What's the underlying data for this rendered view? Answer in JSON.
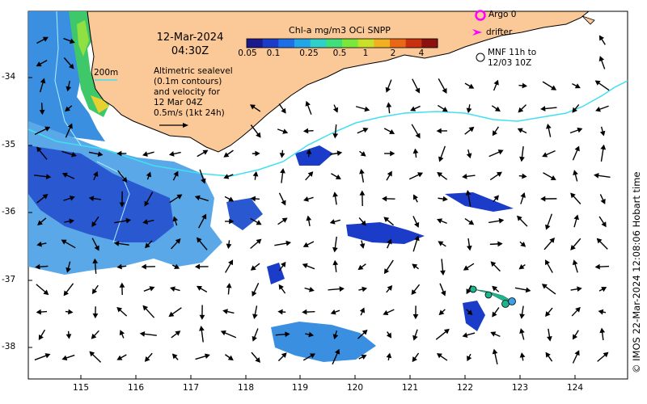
{
  "title": {
    "date": "12-Mar-2024",
    "time": "04:30Z"
  },
  "colorbar": {
    "title": "Chl-a mg/m3 OCi SNPP",
    "ticks": [
      "0.05",
      "0.1",
      "0.25",
      "0.5",
      "1",
      "2",
      "4"
    ],
    "colors": [
      "#1a1a8c",
      "#1b3cc8",
      "#1e6fe6",
      "#22a6e8",
      "#2fd0c8",
      "#3fe07a",
      "#7ae83a",
      "#c8e028",
      "#f0b020",
      "#e86818",
      "#c83010",
      "#8c1010"
    ]
  },
  "info": {
    "line1": "Altimetric sealevel",
    "line2": "(0.1m contours)",
    "line3": "and velocity for",
    "line4": "12 Mar 04Z",
    "line5": "0.5m/s (1kt 24h)"
  },
  "depth_label": "200m",
  "legend": {
    "argo": "Argo 0",
    "drifter": "drifter",
    "mnf_line1": "MNF 11h to",
    "mnf_line2": "12/03 10Z"
  },
  "axes": {
    "lon_ticks": [
      "115",
      "116",
      "117",
      "118",
      "119",
      "120",
      "121",
      "122",
      "123",
      "124"
    ],
    "lat_ticks": [
      "-34",
      "-35",
      "-36",
      "-37",
      "-38"
    ],
    "lon_range": [
      114.05,
      125.0
    ],
    "lat_range": [
      -38.45,
      -33.0
    ]
  },
  "credit": "© IMOS 22-Mar-2024 12:08:06 Hobart time",
  "colors": {
    "land": "#fbc998",
    "coast": "#000000",
    "isobath": "#40e0f0",
    "chl_low": "#1a3ccf",
    "chl_mid": "#3a8fe0",
    "chl_green": "#3fc86a",
    "track": "#1eb48c",
    "argo": "#ff00ff"
  }
}
